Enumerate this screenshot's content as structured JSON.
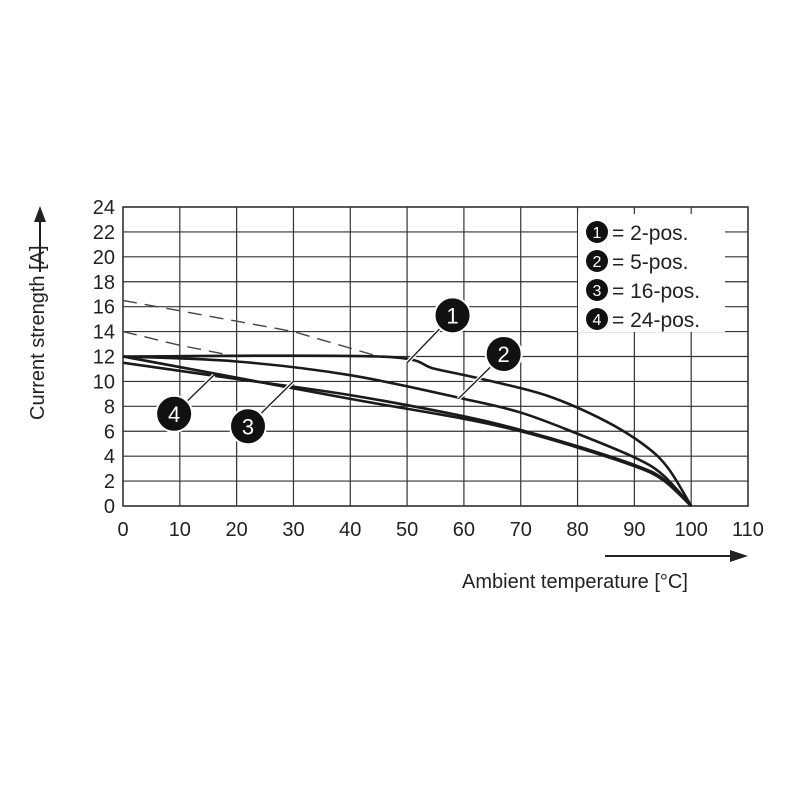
{
  "chart_data": {
    "type": "line",
    "xlabel": "Ambient temperature [°C]",
    "ylabel": "Current strength [A]",
    "xlim": [
      0,
      110
    ],
    "ylim": [
      0,
      24
    ],
    "x_ticks": [
      0,
      10,
      20,
      30,
      40,
      50,
      60,
      70,
      80,
      90,
      100,
      110
    ],
    "y_ticks": [
      0,
      2,
      4,
      6,
      8,
      10,
      12,
      14,
      16,
      18,
      20,
      22,
      24
    ],
    "grid": true,
    "legend_position": "top-right",
    "legend": [
      {
        "marker": "1",
        "text": "= 2-pos."
      },
      {
        "marker": "2",
        "text": "= 5-pos."
      },
      {
        "marker": "3",
        "text": "= 16-pos."
      },
      {
        "marker": "4",
        "text": "= 24-pos."
      }
    ],
    "series": [
      {
        "marker": "1",
        "style": "solid",
        "x": [
          0,
          45,
          55,
          65,
          75,
          85,
          92,
          96,
          100
        ],
        "y": [
          12,
          12,
          11,
          10,
          8.8,
          6.8,
          4.8,
          3.0,
          0
        ]
      },
      {
        "marker": "2",
        "style": "solid",
        "x": [
          0,
          20,
          40,
          60,
          70,
          80,
          90,
          95,
          100
        ],
        "y": [
          12,
          11.6,
          10.5,
          8.6,
          7.5,
          5.8,
          3.9,
          2.5,
          0
        ]
      },
      {
        "marker": "3",
        "style": "solid",
        "x": [
          0,
          20,
          40,
          60,
          70,
          80,
          90,
          95,
          100
        ],
        "y": [
          11.5,
          10.2,
          8.9,
          7.2,
          6.1,
          4.8,
          3.3,
          2.2,
          0
        ]
      },
      {
        "marker": "4",
        "style": "solid",
        "x": [
          0,
          20,
          40,
          60,
          70,
          80,
          90,
          95,
          100
        ],
        "y": [
          12,
          10.3,
          8.6,
          7.0,
          6.0,
          4.7,
          3.2,
          2.1,
          0
        ]
      },
      {
        "marker": "1",
        "style": "dashed",
        "x": [
          0,
          30,
          45
        ],
        "y": [
          16.5,
          14,
          12
        ]
      },
      {
        "marker": "2",
        "style": "dashed",
        "x": [
          0,
          10,
          20
        ],
        "y": [
          14,
          12.9,
          12
        ]
      }
    ],
    "callouts": [
      {
        "label": "1",
        "x": 58,
        "y": 15.3,
        "to_x": 50,
        "to_y": 11.5
      },
      {
        "label": "2",
        "x": 67,
        "y": 12.2,
        "to_x": 59,
        "to_y": 8.6
      },
      {
        "label": "3",
        "x": 22,
        "y": 6.4,
        "to_x": 30,
        "to_y": 10.0
      },
      {
        "label": "4",
        "x": 9,
        "y": 7.4,
        "to_x": 16,
        "to_y": 10.5
      }
    ]
  }
}
